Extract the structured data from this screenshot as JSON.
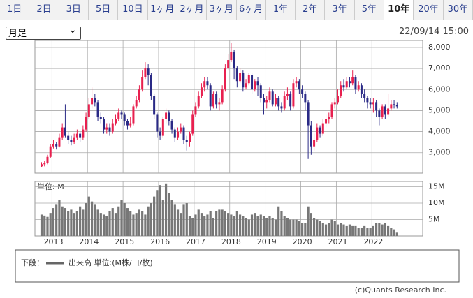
{
  "tabs": [
    "1日",
    "2日",
    "3日",
    "5日",
    "10日",
    "1ヶ月",
    "2ヶ月",
    "3ヶ月",
    "6ヶ月",
    "1年",
    "2年",
    "3年",
    "5年",
    "10年",
    "20年",
    "30年"
  ],
  "selected_tab": 13,
  "period_select": "月足",
  "timestamp": "22/09/14 15:00",
  "legend": {
    "prefix": "下段：",
    "label": "出来高 単位:(M株/口/枚)"
  },
  "copyright": "(c)Quants Research Inc.",
  "chart_data": [
    {
      "type": "candlestick",
      "up_color": "#e8204f",
      "down_color": "#2a2a86",
      "grid": true,
      "ylim": [
        2030,
        8330
      ],
      "yticks": [
        {
          "value": 3000,
          "label": "3,000"
        },
        {
          "value": 4000,
          "label": "4,000"
        },
        {
          "value": 5000,
          "label": "5,000"
        },
        {
          "value": 6000,
          "label": "6,000"
        },
        {
          "value": 7000,
          "label": "7,000"
        },
        {
          "value": 8000,
          "label": "8,000"
        }
      ],
      "open": [
        2350,
        2450,
        2500,
        2800,
        3300,
        3400,
        3300,
        3700,
        4200,
        3800,
        3600,
        3500,
        3700,
        3900,
        3700,
        4100,
        4700,
        5300,
        5600,
        5400,
        4700,
        4600,
        4100,
        4200,
        4000,
        4400,
        4600,
        4900,
        4800,
        4500,
        4300,
        4400,
        5200,
        5500,
        6000,
        6600,
        7000,
        6700,
        5700,
        4800,
        4000,
        3800,
        4600,
        4900,
        4500,
        4100,
        3700,
        4000,
        4200,
        3600,
        3500,
        3900,
        4800,
        5200,
        5700,
        6100,
        6400,
        6200,
        5200,
        5800,
        5300,
        5400,
        6000,
        7000,
        7400,
        7800,
        7000,
        6400,
        6800,
        6100,
        6300,
        6700,
        6000,
        6400,
        6200,
        5600,
        5400,
        5500,
        5900,
        5300,
        5600,
        5200,
        5100,
        5700,
        5800,
        5200,
        6300,
        6400,
        6000,
        5800,
        5400,
        4300,
        3300,
        3600,
        4200,
        3900,
        4400,
        4600,
        4700,
        5300,
        5400,
        5700,
        6200,
        6100,
        6400,
        6300,
        6600,
        6000,
        6200,
        5800,
        5600,
        5400,
        5300,
        5400,
        5000,
        4700,
        5200,
        4800,
        5100,
        5300,
        5250
      ],
      "high": [
        2550,
        2600,
        2900,
        3400,
        3600,
        3500,
        3900,
        4400,
        5300,
        4000,
        3800,
        3900,
        4100,
        4000,
        4300,
        4900,
        5600,
        6100,
        5800,
        5500,
        4900,
        4700,
        4400,
        4400,
        4600,
        4800,
        5100,
        5000,
        4900,
        4600,
        4700,
        5300,
        5700,
        6200,
        6900,
        7300,
        7200,
        6800,
        5800,
        4900,
        4200,
        4700,
        5100,
        5000,
        4600,
        4200,
        4200,
        4400,
        4300,
        3800,
        4000,
        5000,
        5400,
        5900,
        6300,
        6600,
        6600,
        6300,
        5900,
        5900,
        5600,
        6200,
        7200,
        7700,
        8200,
        7900,
        7100,
        7000,
        6900,
        6500,
        6800,
        6800,
        6500,
        6600,
        6300,
        5800,
        5700,
        6100,
        6000,
        5800,
        5700,
        5400,
        5900,
        6100,
        5900,
        6500,
        6600,
        6500,
        6200,
        5900,
        5500,
        4500,
        3900,
        4400,
        4300,
        4600,
        4800,
        4900,
        5400,
        5600,
        6000,
        6400,
        6500,
        6600,
        6600,
        6900,
        6700,
        6400,
        6300,
        6000,
        5700,
        5600,
        5600,
        5500,
        5100,
        5300,
        5300,
        5800,
        5500,
        5500,
        5400
      ],
      "low": [
        2300,
        2350,
        2450,
        2750,
        3200,
        3150,
        3250,
        3600,
        3700,
        3400,
        3350,
        3400,
        3600,
        3500,
        3600,
        4000,
        4600,
        5100,
        5200,
        4500,
        4400,
        3900,
        3900,
        3800,
        3900,
        4300,
        4500,
        4600,
        4300,
        4100,
        4200,
        4300,
        5100,
        5400,
        5900,
        6500,
        6200,
        5500,
        4600,
        3700,
        3600,
        3700,
        4400,
        4300,
        3900,
        3500,
        3600,
        3900,
        3400,
        3100,
        3300,
        3800,
        4700,
        5100,
        5600,
        5900,
        6000,
        5000,
        5100,
        5100,
        5000,
        5300,
        5900,
        6900,
        7300,
        6500,
        6100,
        6300,
        5900,
        6000,
        6200,
        5800,
        5900,
        5700,
        5400,
        4800,
        5100,
        5400,
        5200,
        5200,
        5000,
        4900,
        5000,
        5500,
        5000,
        5100,
        6100,
        5800,
        5600,
        5000,
        2700,
        2900,
        3100,
        3500,
        3700,
        3800,
        4200,
        4400,
        4600,
        5100,
        5300,
        5600,
        5900,
        6000,
        6100,
        6200,
        5800,
        5900,
        5600,
        5400,
        5100,
        5100,
        4900,
        4700,
        4300,
        4600,
        4600,
        4700,
        5000,
        5100,
        5100
      ],
      "close": [
        2450,
        2500,
        2800,
        3300,
        3400,
        3300,
        3700,
        4200,
        3800,
        3600,
        3500,
        3700,
        3900,
        3700,
        4100,
        4700,
        5300,
        5600,
        5400,
        4700,
        4600,
        4100,
        4200,
        4000,
        4400,
        4600,
        4900,
        4800,
        4500,
        4300,
        4400,
        5200,
        5500,
        6000,
        6600,
        7000,
        6700,
        5700,
        4800,
        4000,
        3800,
        4600,
        4900,
        4500,
        4100,
        3700,
        4000,
        4200,
        3600,
        3500,
        3900,
        4800,
        5200,
        5700,
        6100,
        6400,
        6200,
        5200,
        5800,
        5300,
        5400,
        6000,
        7000,
        7400,
        7800,
        7000,
        6400,
        6800,
        6100,
        6300,
        6700,
        6000,
        6400,
        6200,
        5600,
        5400,
        5500,
        5900,
        5300,
        5600,
        5200,
        5100,
        5700,
        5800,
        5200,
        6300,
        6400,
        6000,
        5800,
        5400,
        4300,
        3300,
        3600,
        4200,
        3900,
        4400,
        4600,
        4700,
        5300,
        5400,
        5700,
        6200,
        6100,
        6400,
        6300,
        6600,
        6000,
        6200,
        5800,
        5600,
        5400,
        5300,
        5400,
        5000,
        4700,
        5200,
        4800,
        5100,
        5300,
        5250,
        5200
      ]
    },
    {
      "type": "bar",
      "unit_label": "単位: M",
      "color": "#777777",
      "grid": true,
      "ylim": [
        0,
        16.6
      ],
      "yticks": [
        {
          "value": 5,
          "label": "5M"
        },
        {
          "value": 10,
          "label": "10M"
        },
        {
          "value": 15,
          "label": "15M"
        }
      ],
      "categories": [
        null,
        null,
        null,
        null,
        "2013",
        null,
        null,
        null,
        null,
        null,
        null,
        null,
        null,
        null,
        null,
        null,
        "2014",
        null,
        null,
        null,
        null,
        null,
        null,
        null,
        null,
        null,
        null,
        null,
        "2015",
        null,
        null,
        null,
        null,
        null,
        null,
        null,
        null,
        null,
        null,
        null,
        "2016",
        null,
        null,
        null,
        null,
        null,
        null,
        null,
        null,
        null,
        null,
        null,
        "2017",
        null,
        null,
        null,
        null,
        null,
        null,
        null,
        null,
        null,
        null,
        null,
        "2018",
        null,
        null,
        null,
        null,
        null,
        null,
        null,
        null,
        null,
        null,
        null,
        "2019",
        null,
        null,
        null,
        null,
        null,
        null,
        null,
        null,
        null,
        null,
        null,
        "2020",
        null,
        null,
        null,
        null,
        null,
        null,
        null,
        null,
        null,
        null,
        null,
        "2021",
        null,
        null,
        null,
        null,
        null,
        null,
        null,
        null,
        null,
        null,
        null,
        "2022",
        null,
        null,
        null,
        null,
        null,
        null,
        null,
        null
      ],
      "values": [
        6.5,
        6.2,
        5.8,
        7.0,
        8.5,
        9.5,
        11.0,
        9.0,
        8.5,
        7.5,
        8.0,
        7.0,
        7.5,
        9.0,
        8.0,
        10.0,
        12.0,
        10.5,
        9.5,
        8.0,
        7.0,
        6.5,
        6.0,
        7.5,
        8.5,
        7.0,
        9.0,
        11.0,
        10.0,
        8.5,
        7.5,
        6.5,
        7.0,
        8.0,
        7.5,
        6.5,
        9.0,
        10.0,
        12.0,
        14.0,
        15.5,
        11.0,
        16.0,
        13.0,
        11.0,
        9.5,
        8.0,
        7.0,
        9.5,
        10.0,
        6.0,
        5.5,
        6.5,
        8.0,
        7.0,
        6.0,
        6.5,
        7.5,
        5.5,
        7.5,
        8.0,
        8.0,
        7.5,
        7.0,
        6.5,
        6.0,
        7.5,
        6.5,
        6.0,
        5.5,
        5.0,
        6.5,
        7.0,
        6.0,
        6.5,
        6.0,
        5.5,
        6.0,
        5.5,
        5.0,
        9.0,
        7.5,
        6.0,
        5.5,
        5.0,
        5.0,
        5.0,
        4.5,
        4.0,
        4.0,
        9.0,
        7.0,
        5.5,
        5.0,
        4.5,
        4.0,
        3.5,
        4.0,
        5.0,
        4.5,
        3.5,
        4.0,
        3.5,
        3.0,
        3.5,
        3.0,
        3.0,
        2.5,
        2.5,
        3.0,
        2.5,
        2.5,
        3.0,
        4.0,
        4.0,
        3.5,
        4.0,
        3.0,
        2.5,
        2.0,
        1.0
      ]
    }
  ]
}
